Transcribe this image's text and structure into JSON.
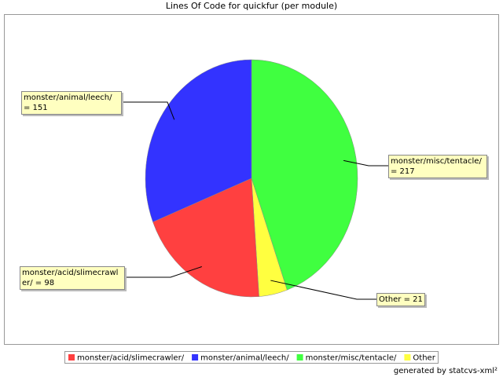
{
  "chart_data": {
    "type": "pie",
    "title": "Lines Of Code for quickfur (per module)",
    "categories": [
      "monster/acid/slimecrawler/",
      "monster/animal/leech/",
      "monster/misc/tentacle/",
      "Other"
    ],
    "values": [
      98,
      151,
      217,
      21
    ],
    "value_labels": [
      "monster/acid/slimecrawler/ = 98",
      "monster/animal/leech/ = 151",
      "monster/misc/tentacle/ = 217",
      "Other = 21"
    ],
    "colors": [
      "#ff4040",
      "#3333ff",
      "#40ff40",
      "#ffff40"
    ],
    "footer": "generated by statcvs-xml²"
  }
}
